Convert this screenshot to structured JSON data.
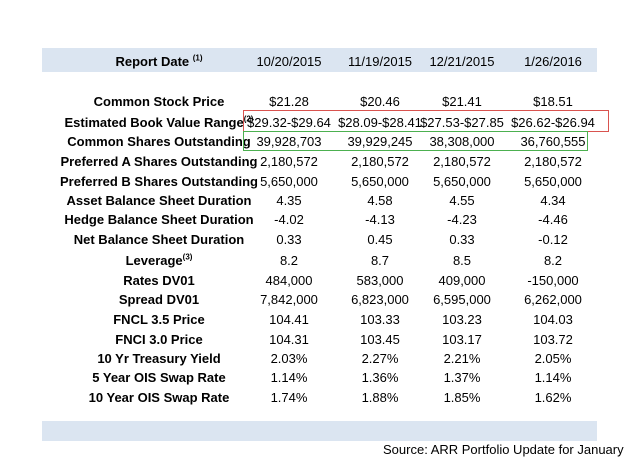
{
  "header": {
    "label": "Report Date",
    "label_sup": "(1)",
    "dates": [
      "10/20/2015",
      "11/19/2015",
      "12/21/2015",
      "1/26/2016"
    ]
  },
  "rows": [
    {
      "label": "Common Stock Price",
      "sup": "",
      "values": [
        "$21.28",
        "$20.46",
        "$21.41",
        "$18.51"
      ]
    },
    {
      "label": "Estimated Book Value Range",
      "sup": "(2)",
      "values": [
        "$29.32-$29.64",
        "$28.09-$28.41",
        "$27.53-$27.85",
        "$26.62-$26.94"
      ]
    },
    {
      "label": "Common Shares Outstanding",
      "sup": "",
      "values": [
        "39,928,703",
        "39,929,245",
        "38,308,000",
        "36,760,555"
      ]
    },
    {
      "label": "Preferred A Shares Outstanding",
      "sup": "",
      "values": [
        "2,180,572",
        "2,180,572",
        "2,180,572",
        "2,180,572"
      ]
    },
    {
      "label": "Preferred B Shares Outstanding",
      "sup": "",
      "values": [
        "5,650,000",
        "5,650,000",
        "5,650,000",
        "5,650,000"
      ]
    },
    {
      "label": "Asset Balance Sheet Duration",
      "sup": "",
      "values": [
        "4.35",
        "4.58",
        "4.55",
        "4.34"
      ]
    },
    {
      "label": "Hedge Balance Sheet Duration",
      "sup": "",
      "values": [
        "-4.02",
        "-4.13",
        "-4.23",
        "-4.46"
      ]
    },
    {
      "label": "Net Balance Sheet Duration",
      "sup": "",
      "values": [
        "0.33",
        "0.45",
        "0.33",
        "-0.12"
      ]
    },
    {
      "label": "Leverage",
      "sup": "(3)",
      "values": [
        "8.2",
        "8.7",
        "8.5",
        "8.2"
      ]
    },
    {
      "label": "Rates DV01",
      "sup": "",
      "values": [
        "484,000",
        "583,000",
        "409,000",
        "-150,000"
      ]
    },
    {
      "label": "Spread DV01",
      "sup": "",
      "values": [
        "7,842,000",
        "6,823,000",
        "6,595,000",
        "6,262,000"
      ]
    },
    {
      "label": "FNCL 3.5 Price",
      "sup": "",
      "values": [
        "104.41",
        "103.33",
        "103.23",
        "104.03"
      ]
    },
    {
      "label": "FNCI 3.0 Price",
      "sup": "",
      "values": [
        "104.31",
        "103.45",
        "103.17",
        "103.72"
      ]
    },
    {
      "label": "10 Yr Treasury Yield",
      "sup": "",
      "values": [
        "2.03%",
        "2.27%",
        "2.21%",
        "2.05%"
      ]
    },
    {
      "label": "5 Year OIS Swap Rate",
      "sup": "",
      "values": [
        "1.14%",
        "1.36%",
        "1.37%",
        "1.14%"
      ]
    },
    {
      "label": "10 Year OIS Swap Rate",
      "sup": "",
      "values": [
        "1.74%",
        "1.88%",
        "1.85%",
        "1.62%"
      ]
    }
  ],
  "source": "Source: ARR Portfolio Update for January",
  "colors": {
    "band": "#dbe5f1",
    "highlight_red": "#d9534f",
    "highlight_green": "#4cb050"
  }
}
